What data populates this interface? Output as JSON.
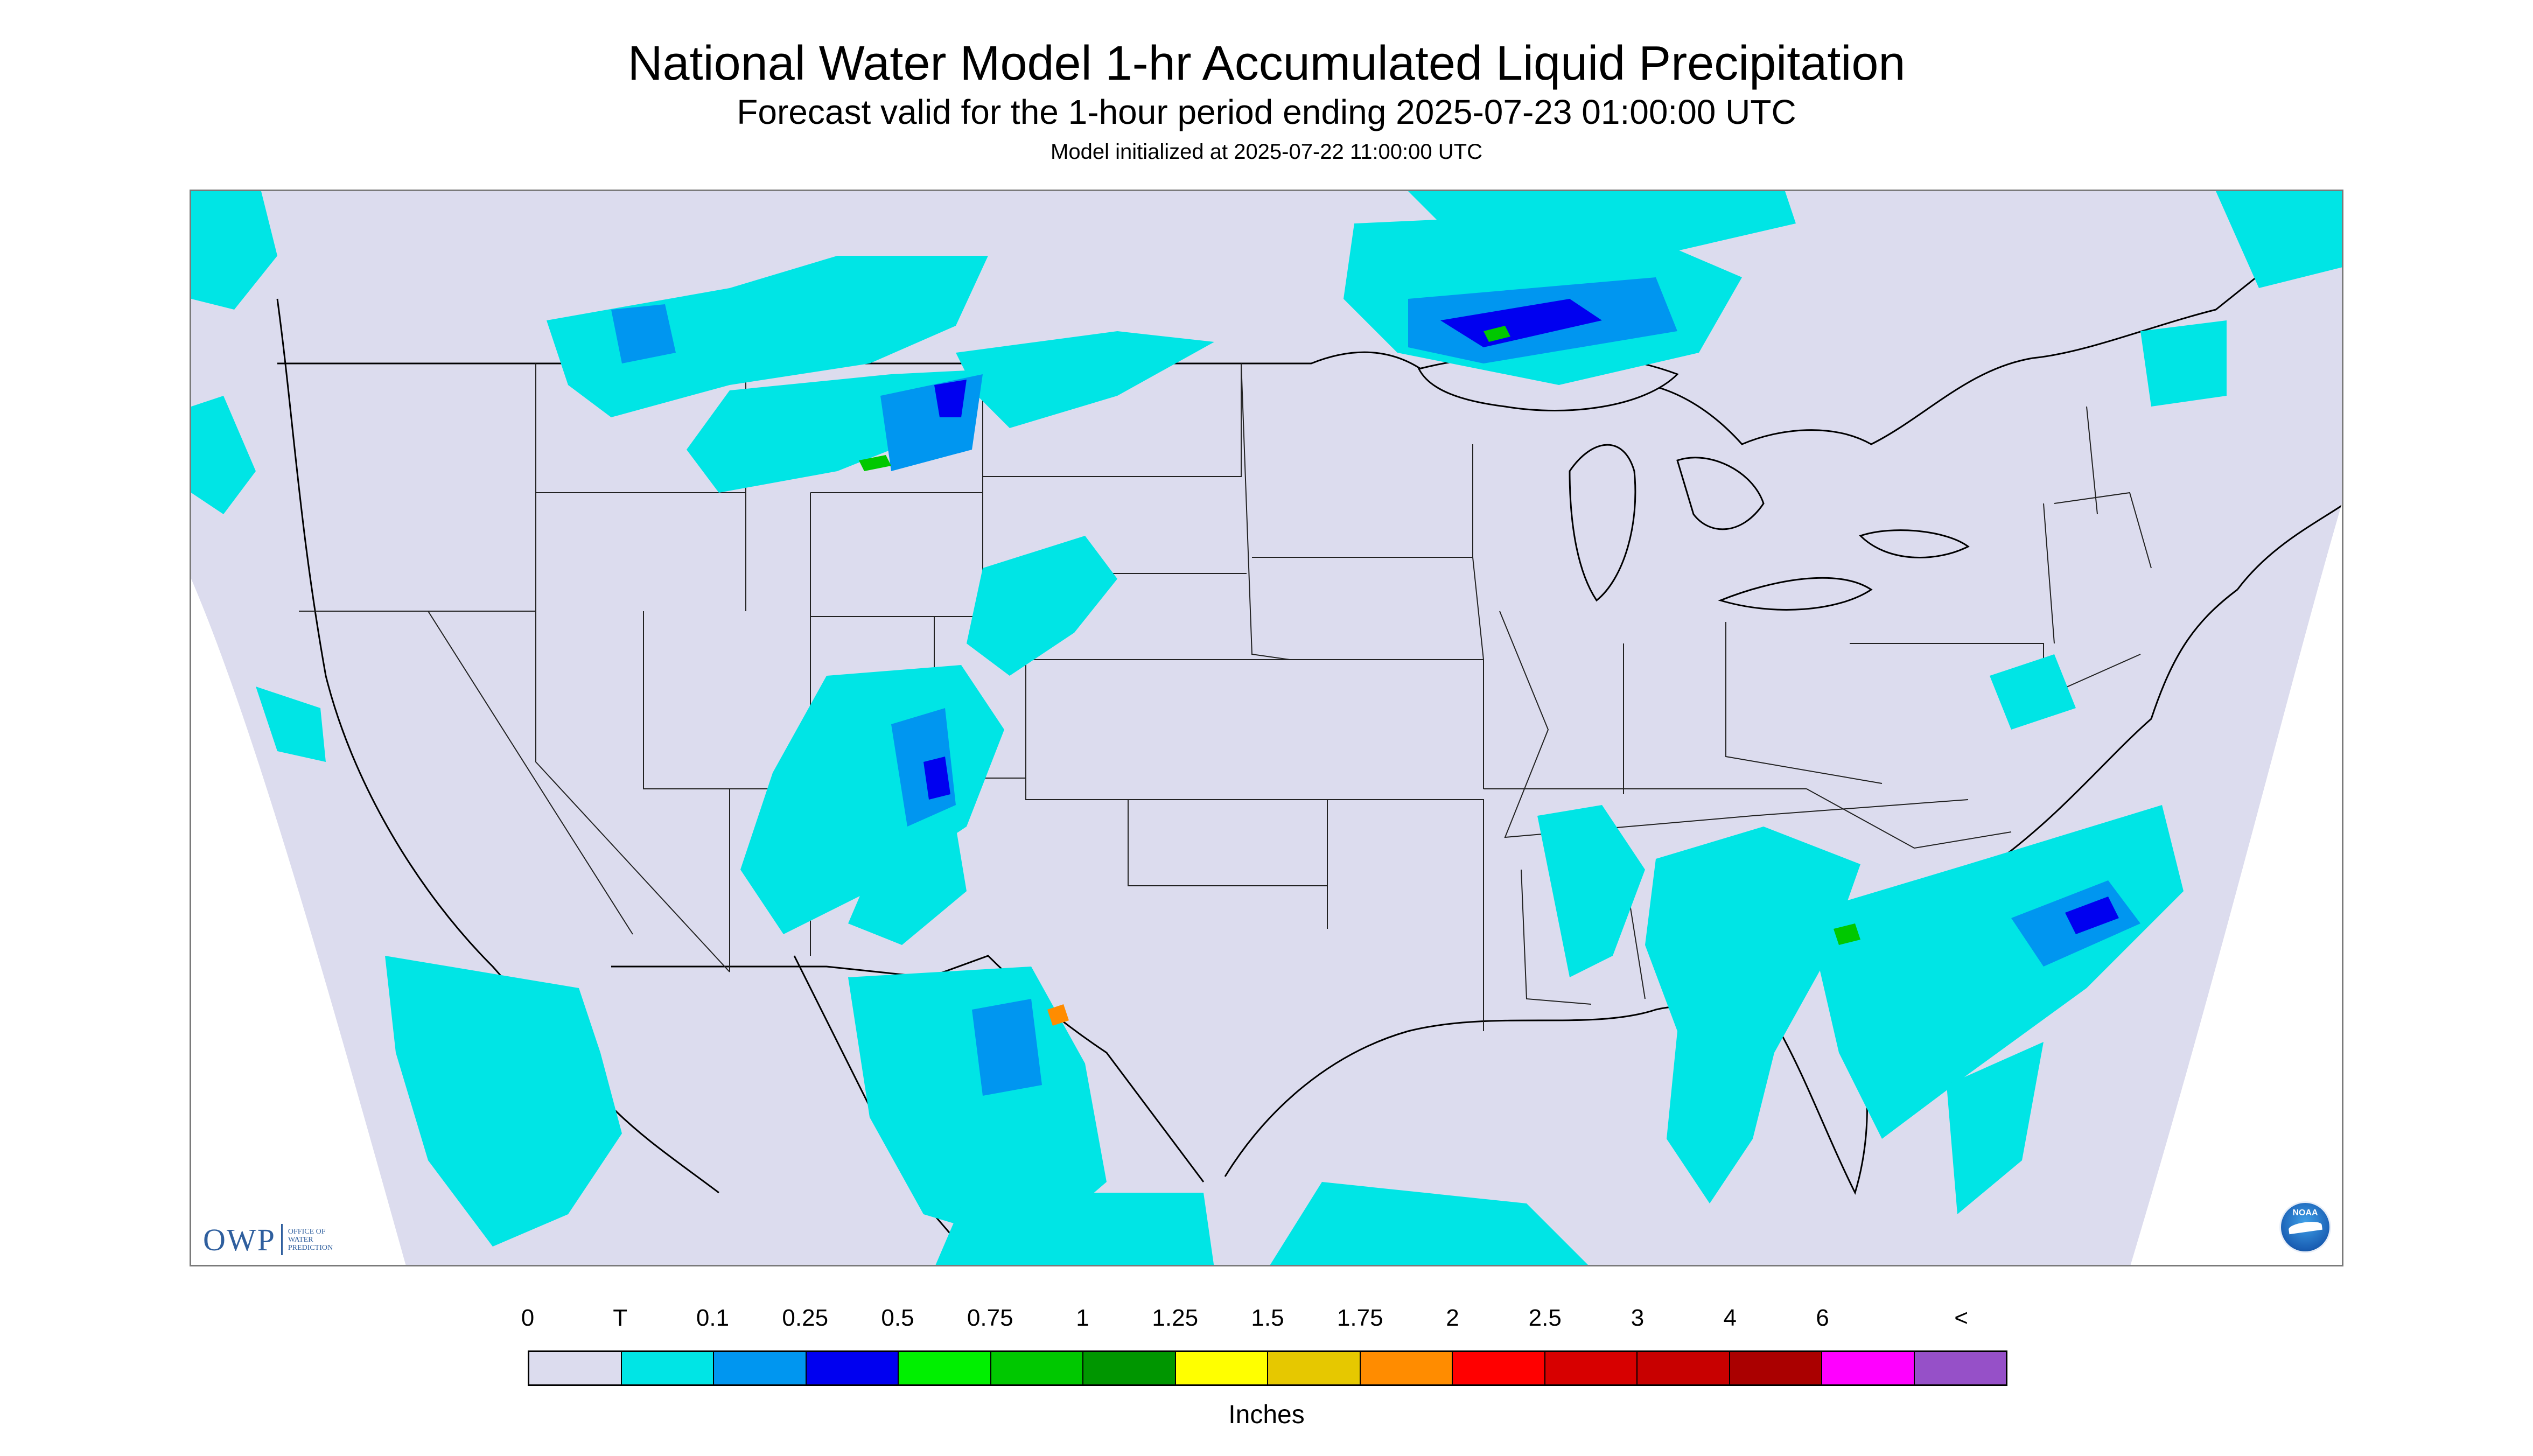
{
  "header": {
    "title": "National Water Model 1-hr Accumulated Liquid Precipitation",
    "subtitle": "Forecast valid for the 1-hour period ending 2025-07-23 01:00:00 UTC",
    "init": "Model initialized at 2025-07-22 11:00:00 UTC"
  },
  "map": {
    "background_color": "#dcdcee",
    "outside_color": "#ffffff",
    "boundary_color": "#000000",
    "owp_logo": {
      "letters": "OWP",
      "line1": "OFFICE OF",
      "line2": "WATER",
      "line3": "PREDICTION"
    },
    "noaa_logo": {
      "text": "NOAA"
    }
  },
  "legend": {
    "labels": [
      "0",
      "T",
      "0.1",
      "0.25",
      "0.5",
      "0.75",
      "1",
      "1.25",
      "1.5",
      "1.75",
      "2",
      "2.5",
      "3",
      "4",
      "6",
      "<"
    ],
    "colors": [
      "#dcdcee",
      "#00e5e5",
      "#0096f0",
      "#0000f0",
      "#00f000",
      "#00c800",
      "#009600",
      "#ffff00",
      "#e6c800",
      "#ff8c00",
      "#ff0000",
      "#d70000",
      "#c80000",
      "#aa0000",
      "#ff00ff",
      "#9650c8"
    ],
    "units": "Inches"
  }
}
